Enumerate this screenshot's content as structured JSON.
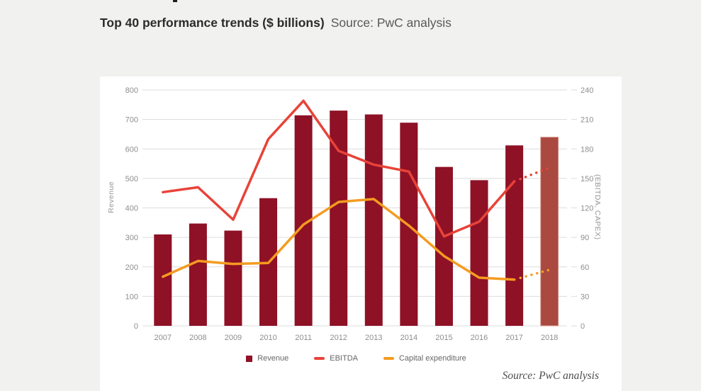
{
  "page": {
    "background_color": "#f1f1f0",
    "card_color": "#ffffff"
  },
  "header": {
    "title": "Top 40 performance trends ($ billions)",
    "source_inline": "Source: PwC analysis"
  },
  "footer": {
    "source": "Source: PwC analysis"
  },
  "chart_data": {
    "type": "bar",
    "subtype": "combo-bar-line-dual-axis",
    "title": "Top 40 performance trends ($ billions)",
    "categories": [
      "2007",
      "2008",
      "2009",
      "2010",
      "2011",
      "2012",
      "2013",
      "2014",
      "2015",
      "2016",
      "2017",
      "2018"
    ],
    "left_axis": {
      "label": "Revenue",
      "min": 0,
      "max": 800,
      "step": 100,
      "ticks": [
        "0",
        "100",
        "200",
        "300",
        "400",
        "500",
        "600",
        "700",
        "800"
      ]
    },
    "right_axis": {
      "label": "(EBITDA, CAPEX)",
      "min": 0,
      "max": 240,
      "step": 30,
      "ticks": [
        "0",
        "30",
        "60",
        "90",
        "120",
        "150",
        "180",
        "210",
        "240"
      ]
    },
    "grid": true,
    "legend_position": "bottom",
    "forecast_year": "2018",
    "series": [
      {
        "name": "Revenue",
        "type": "bar",
        "axis": "left",
        "color": "#8e1126",
        "forecast_color": "#a9493f",
        "forecast_edge": "#d9a19a",
        "values": [
          310,
          347,
          323,
          433,
          714,
          730,
          717,
          689,
          539,
          494,
          612,
          640
        ]
      },
      {
        "name": "EBITDA",
        "type": "line",
        "axis": "right",
        "color": "#e84338",
        "values": [
          136,
          141,
          108,
          190,
          229,
          178,
          164,
          157,
          91,
          106,
          147,
          161
        ]
      },
      {
        "name": "Capital expenditure",
        "type": "line",
        "axis": "right",
        "color": "#f49b20",
        "values": [
          50,
          66,
          63,
          64,
          103,
          126,
          129,
          102,
          71,
          49,
          47,
          57
        ]
      }
    ],
    "colors": {
      "grid": "#dcdcdc",
      "tick_text": "#8e8e8e"
    }
  }
}
